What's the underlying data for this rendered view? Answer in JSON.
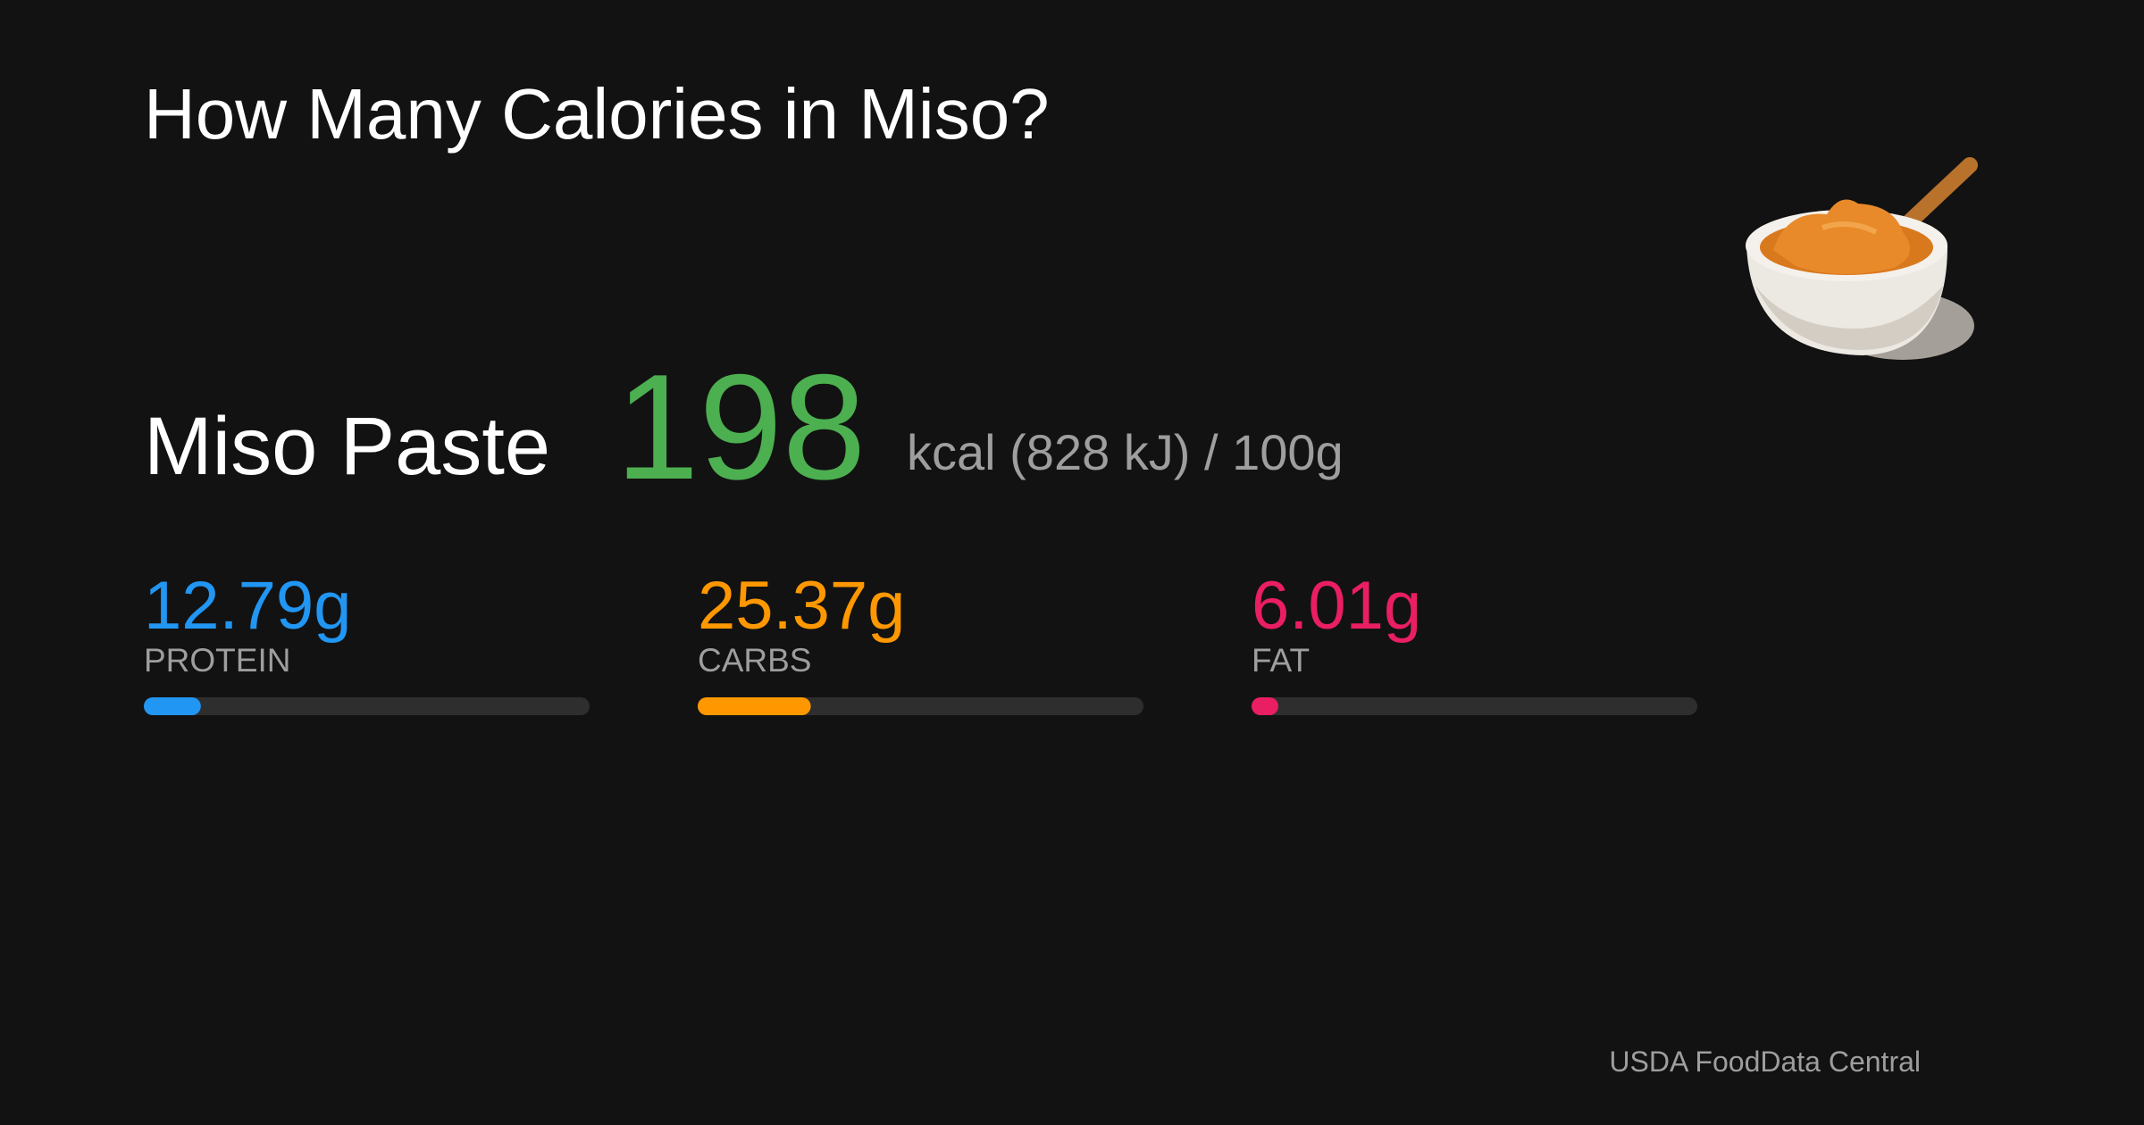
{
  "title": "How Many Calories in Miso?",
  "food": "Miso Paste",
  "calories": 198,
  "calorie_unit": "kcal (828 kJ) / 100g",
  "bar_range": [
    0,
    100
  ],
  "macros": [
    {
      "name": "PROTEIN",
      "value": 12.79,
      "value_label": "12.79g",
      "color": "#2196f3"
    },
    {
      "name": "CARBS",
      "value": 25.37,
      "value_label": "25.37g",
      "color": "#ff9800"
    },
    {
      "name": "FAT",
      "value": 6.01,
      "value_label": "6.01g",
      "color": "#e91e63"
    }
  ],
  "source": "USDA FoodData Central"
}
